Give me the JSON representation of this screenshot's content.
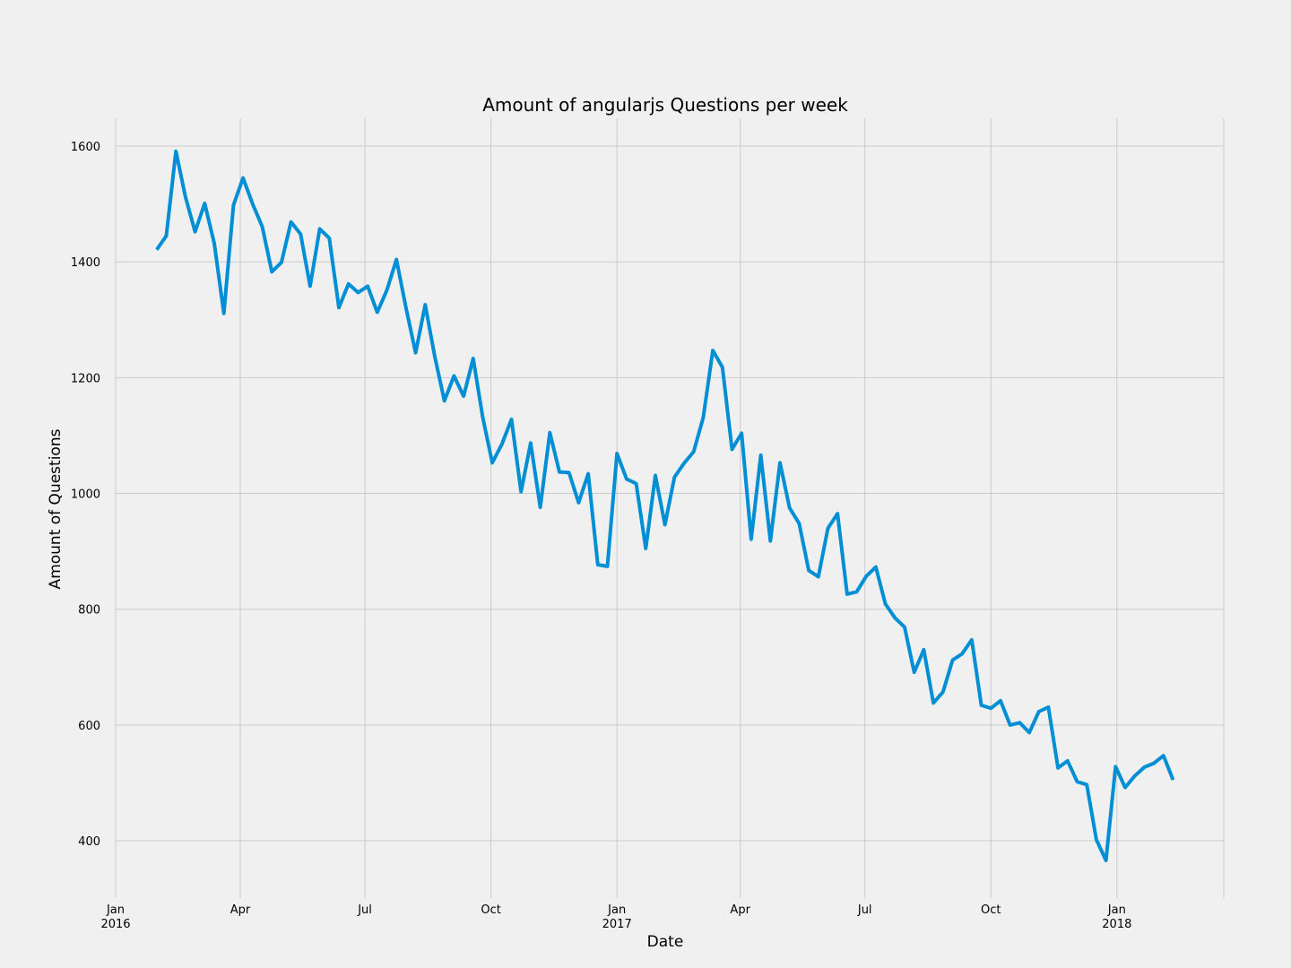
{
  "chart_data": {
    "type": "line",
    "title": "Amount of angularjs Questions per week",
    "xlabel": "Date",
    "ylabel": "Amount of Questions",
    "grid": true,
    "color": "#008fd5",
    "xlim": [
      "2016-01-01",
      "2018-03-20"
    ],
    "ylim": [
      301,
      1648
    ],
    "yticks": [
      400,
      600,
      800,
      1000,
      1200,
      1400,
      1600
    ],
    "xticks": [
      {
        "date": "2016-01-01",
        "label": "Jan",
        "year": "2016"
      },
      {
        "date": "2016-04-01",
        "label": "Apr",
        "year": ""
      },
      {
        "date": "2016-07-01",
        "label": "Jul",
        "year": ""
      },
      {
        "date": "2016-10-01",
        "label": "Oct",
        "year": ""
      },
      {
        "date": "2017-01-01",
        "label": "Jan",
        "year": "2017"
      },
      {
        "date": "2017-04-01",
        "label": "Apr",
        "year": ""
      },
      {
        "date": "2017-07-01",
        "label": "Jul",
        "year": ""
      },
      {
        "date": "2017-10-01",
        "label": "Oct",
        "year": ""
      },
      {
        "date": "2018-01-01",
        "label": "Jan",
        "year": "2018"
      }
    ],
    "series": [
      {
        "x": [
          "2016-01-31",
          "2016-02-07",
          "2016-02-14",
          "2016-02-21",
          "2016-02-28",
          "2016-03-06",
          "2016-03-13",
          "2016-03-20",
          "2016-03-27",
          "2016-04-03",
          "2016-04-10",
          "2016-04-17",
          "2016-04-24",
          "2016-05-01",
          "2016-05-08",
          "2016-05-15",
          "2016-05-22",
          "2016-05-29",
          "2016-06-05",
          "2016-06-12",
          "2016-06-19",
          "2016-06-26",
          "2016-07-03",
          "2016-07-10",
          "2016-07-17",
          "2016-07-24",
          "2016-07-31",
          "2016-08-07",
          "2016-08-14",
          "2016-08-21",
          "2016-08-28",
          "2016-09-04",
          "2016-09-11",
          "2016-09-18",
          "2016-09-25",
          "2016-10-02",
          "2016-10-09",
          "2016-10-16",
          "2016-10-23",
          "2016-10-30",
          "2016-11-06",
          "2016-11-13",
          "2016-11-20",
          "2016-11-27",
          "2016-12-04",
          "2016-12-11",
          "2016-12-18",
          "2016-12-25",
          "2017-01-01",
          "2017-01-08",
          "2017-01-15",
          "2017-01-22",
          "2017-01-29",
          "2017-02-05",
          "2017-02-12",
          "2017-02-19",
          "2017-02-26",
          "2017-03-05",
          "2017-03-12",
          "2017-03-19",
          "2017-03-26",
          "2017-04-02",
          "2017-04-09",
          "2017-04-16",
          "2017-04-23",
          "2017-04-30",
          "2017-05-07",
          "2017-05-14",
          "2017-05-21",
          "2017-05-28",
          "2017-06-04",
          "2017-06-11",
          "2017-06-18",
          "2017-06-25",
          "2017-07-02",
          "2017-07-09",
          "2017-07-16",
          "2017-07-23",
          "2017-07-30",
          "2017-08-06",
          "2017-08-13",
          "2017-08-20",
          "2017-08-27",
          "2017-09-03",
          "2017-09-10",
          "2017-09-17",
          "2017-09-24",
          "2017-10-01",
          "2017-10-08",
          "2017-10-15",
          "2017-10-22",
          "2017-10-29",
          "2017-11-05",
          "2017-11-12",
          "2017-11-19",
          "2017-11-26",
          "2017-12-03",
          "2017-12-10",
          "2017-12-17",
          "2017-12-24",
          "2017-12-31",
          "2018-01-07",
          "2018-01-14",
          "2018-01-21",
          "2018-01-28",
          "2018-02-04",
          "2018-02-11"
        ],
        "values": [
          1421,
          1445,
          1591,
          1512,
          1452,
          1501,
          1432,
          1311,
          1498,
          1545,
          1500,
          1461,
          1383,
          1399,
          1469,
          1448,
          1358,
          1457,
          1441,
          1321,
          1362,
          1347,
          1358,
          1313,
          1351,
          1404,
          1320,
          1243,
          1326,
          1236,
          1160,
          1203,
          1168,
          1233,
          1131,
          1053,
          1085,
          1128,
          1003,
          1087,
          976,
          1105,
          1037,
          1036,
          984,
          1034,
          877,
          874,
          1069,
          1025,
          1017,
          905,
          1031,
          946,
          1028,
          1052,
          1072,
          1131,
          1247,
          1218,
          1076,
          1104,
          921,
          1066,
          918,
          1053,
          975,
          948,
          867,
          856,
          940,
          965,
          826,
          830,
          857,
          873,
          809,
          785,
          769,
          691,
          730,
          638,
          657,
          712,
          723,
          747,
          634,
          629,
          642,
          600,
          604,
          587,
          623,
          631,
          526,
          538,
          502,
          497,
          402,
          366,
          528,
          492,
          512,
          527,
          534,
          547,
          505
        ]
      }
    ]
  }
}
